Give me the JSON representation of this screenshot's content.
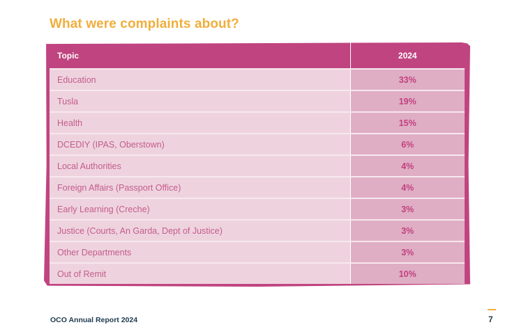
{
  "heading": "What were complaints about?",
  "table": {
    "columns": [
      "Topic",
      "2024"
    ],
    "rows": [
      {
        "topic": "Education",
        "value": "33%"
      },
      {
        "topic": "Tusla",
        "value": "19%"
      },
      {
        "topic": "Health",
        "value": "15%"
      },
      {
        "topic": "DCEDIY (IPAS, Oberstown)",
        "value": "6%"
      },
      {
        "topic": "Local Authorities",
        "value": "4%"
      },
      {
        "topic": "Foreign Affairs (Passport Office)",
        "value": "4%"
      },
      {
        "topic": "Early Learning (Creche)",
        "value": "3%"
      },
      {
        "topic": "Justice (Courts, An Garda, Dept of Justice)",
        "value": "3%"
      },
      {
        "topic": "Other Departments",
        "value": "3%"
      },
      {
        "topic": "Out of Remit",
        "value": "10%"
      }
    ]
  },
  "footer": {
    "report_title": "OCO Annual Report 2024",
    "page_number": "7"
  },
  "colors": {
    "heading": "#f0ae3c",
    "table_header": "#c04480",
    "topic_cell": "#eed3de",
    "value_cell": "#dfaec4",
    "value_text": "#c2407f",
    "footer_text": "#1d3a4f"
  }
}
